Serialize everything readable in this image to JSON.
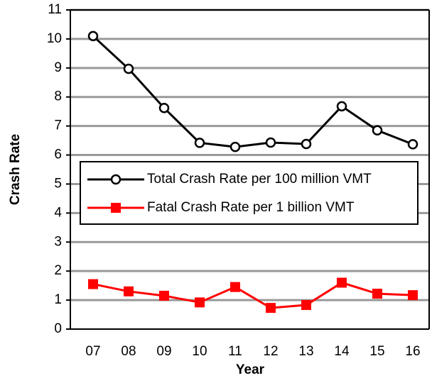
{
  "chart_data": {
    "type": "line",
    "x_label": "Year",
    "y_label": "Crash Rate",
    "categories": [
      "07",
      "08",
      "09",
      "10",
      "11",
      "12",
      "13",
      "14",
      "15",
      "16"
    ],
    "series": [
      {
        "name": "Total Crash Rate per 100 million VMT",
        "color": "#000000",
        "marker": "circle",
        "values": [
          10.1,
          8.97,
          7.62,
          6.42,
          6.28,
          6.43,
          6.38,
          7.68,
          6.85,
          6.37
        ]
      },
      {
        "name": "Fatal Crash Rate per 1 billion VMT",
        "color": "#ff0000",
        "marker": "square",
        "values": [
          1.55,
          1.3,
          1.15,
          0.92,
          1.45,
          0.73,
          0.83,
          1.6,
          1.22,
          1.17
        ]
      }
    ],
    "ylim": [
      0,
      11
    ],
    "yticks": [
      0,
      1,
      2,
      3,
      4,
      5,
      6,
      7,
      8,
      9,
      10,
      11
    ],
    "grid": true
  }
}
